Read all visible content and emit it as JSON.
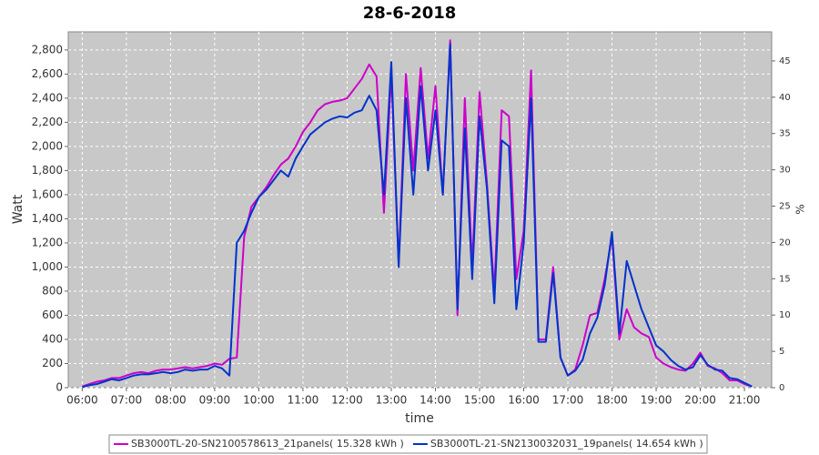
{
  "chart_data": {
    "type": "line",
    "title": "28-6-2018",
    "x_label": "time",
    "y_label": "Watt",
    "y2_label": "%",
    "x": [
      "06:00",
      "06:10",
      "06:20",
      "06:30",
      "06:40",
      "06:50",
      "07:00",
      "07:10",
      "07:20",
      "07:30",
      "07:40",
      "07:50",
      "08:00",
      "08:10",
      "08:20",
      "08:30",
      "08:40",
      "08:50",
      "09:00",
      "09:10",
      "09:20",
      "09:30",
      "09:40",
      "09:50",
      "10:00",
      "10:10",
      "10:20",
      "10:30",
      "10:40",
      "10:50",
      "11:00",
      "11:10",
      "11:20",
      "11:30",
      "11:40",
      "11:50",
      "12:00",
      "12:10",
      "12:20",
      "12:30",
      "12:40",
      "12:50",
      "13:00",
      "13:10",
      "13:20",
      "13:30",
      "13:40",
      "13:50",
      "14:00",
      "14:10",
      "14:20",
      "14:30",
      "14:40",
      "14:50",
      "15:00",
      "15:10",
      "15:20",
      "15:30",
      "15:40",
      "15:50",
      "16:00",
      "16:10",
      "16:20",
      "16:30",
      "16:40",
      "16:50",
      "17:00",
      "17:10",
      "17:20",
      "17:30",
      "17:40",
      "17:50",
      "18:00",
      "18:10",
      "18:20",
      "18:30",
      "18:40",
      "18:50",
      "19:00",
      "19:10",
      "19:20",
      "19:30",
      "19:40",
      "19:50",
      "20:00",
      "20:10",
      "20:20",
      "20:30",
      "20:40",
      "20:50",
      "21:00",
      "21:10"
    ],
    "series": [
      {
        "name": "SB3000TL-20-SN2100578613_21panels( 15.328 kWh )",
        "color": "#cc00cc",
        "values": [
          10,
          30,
          50,
          60,
          80,
          80,
          100,
          120,
          130,
          120,
          140,
          150,
          150,
          160,
          170,
          160,
          170,
          180,
          200,
          190,
          240,
          250,
          1250,
          1500,
          1580,
          1660,
          1760,
          1850,
          1900,
          2000,
          2120,
          2200,
          2300,
          2350,
          2370,
          2380,
          2400,
          2480,
          2560,
          2680,
          2580,
          1450,
          2600,
          1020,
          2600,
          1800,
          2650,
          1900,
          2500,
          1600,
          2880,
          600,
          2400,
          1000,
          2450,
          1700,
          800,
          2300,
          2250,
          900,
          1300,
          2630,
          400,
          400,
          1000,
          250,
          100,
          150,
          350,
          600,
          620,
          900,
          1250,
          400,
          650,
          500,
          450,
          420,
          250,
          200,
          170,
          150,
          140,
          200,
          290,
          180,
          160,
          120,
          60,
          60,
          30,
          10
        ]
      },
      {
        "name": "SB3000TL-21-SN2130032031_19panels( 14.654 kWh )",
        "color": "#0033cc",
        "values": [
          5,
          20,
          30,
          50,
          70,
          60,
          80,
          100,
          110,
          110,
          120,
          130,
          120,
          130,
          150,
          140,
          150,
          150,
          180,
          160,
          100,
          1200,
          1300,
          1450,
          1580,
          1640,
          1720,
          1800,
          1750,
          1900,
          2000,
          2100,
          2150,
          2200,
          2230,
          2250,
          2240,
          2280,
          2300,
          2420,
          2300,
          1600,
          2700,
          1000,
          2400,
          1600,
          2500,
          1800,
          2300,
          1600,
          2850,
          650,
          2150,
          900,
          2250,
          1650,
          700,
          2050,
          2000,
          650,
          1200,
          2400,
          380,
          380,
          950,
          250,
          100,
          140,
          230,
          450,
          580,
          850,
          1290,
          450,
          1050,
          850,
          650,
          500,
          350,
          300,
          230,
          180,
          150,
          170,
          270,
          190,
          150,
          140,
          80,
          70,
          40,
          10
        ]
      }
    ],
    "xlim": [
      "05:41",
      "21:37"
    ],
    "xticks": [
      "06:00",
      "07:00",
      "08:00",
      "09:00",
      "10:00",
      "11:00",
      "12:00",
      "13:00",
      "14:00",
      "15:00",
      "16:00",
      "17:00",
      "18:00",
      "19:00",
      "20:00",
      "21:00"
    ],
    "ylim": [
      0,
      2950
    ],
    "yticks": [
      0,
      200,
      400,
      600,
      800,
      {
        "value": 1000,
        "label": "1,000"
      },
      {
        "value": 1200,
        "label": "1,200"
      },
      {
        "value": 1400,
        "label": "1,400"
      },
      {
        "value": 1600,
        "label": "1,600"
      },
      {
        "value": 1800,
        "label": "1,800"
      },
      {
        "value": 2000,
        "label": "2,000"
      },
      {
        "value": 2200,
        "label": "2,200"
      },
      {
        "value": 2400,
        "label": "2,400"
      },
      {
        "value": 2600,
        "label": "2,600"
      },
      {
        "value": 2800,
        "label": "2,800"
      }
    ],
    "y2lim": [
      0,
      49
    ],
    "y2ticks": [
      0,
      5,
      10,
      15,
      20,
      25,
      30,
      35,
      40,
      45
    ],
    "grid": true
  }
}
